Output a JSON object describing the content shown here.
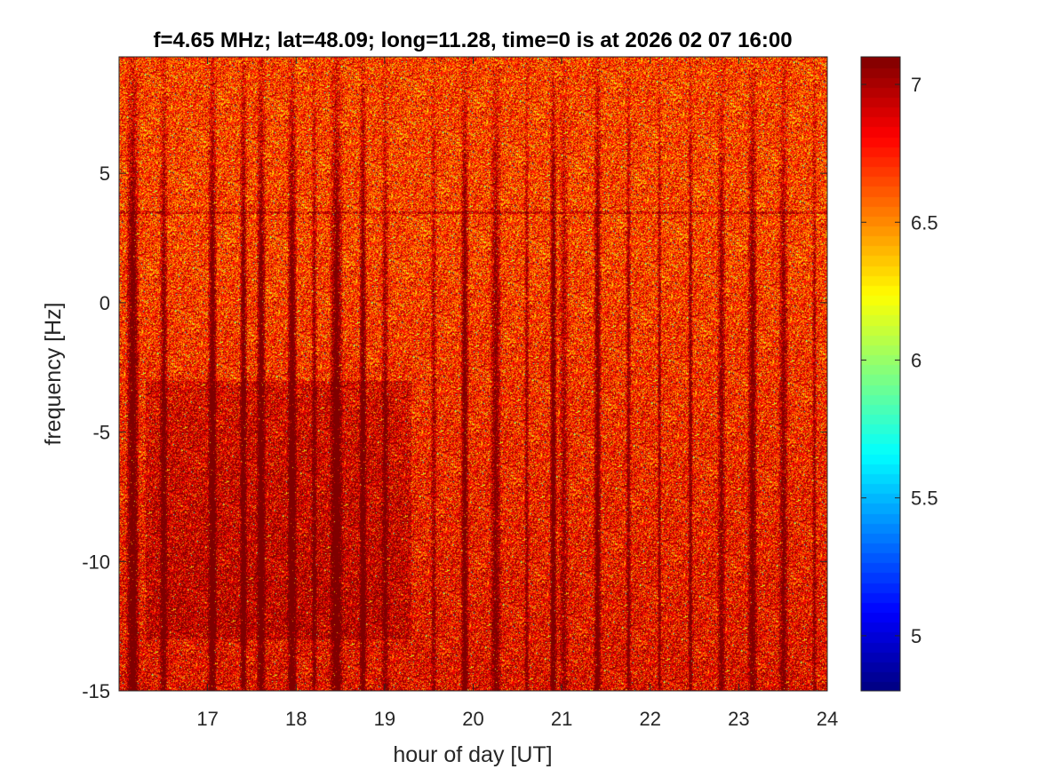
{
  "chart_data": {
    "type": "heatmap",
    "title": "f=4.65 MHz;  lat=48.09; long=11.28, time=0 is at 2026 02 07 16:00",
    "xlabel": "hour of day [UT]",
    "ylabel": "frequency [Hz]",
    "xlim": [
      16,
      24
    ],
    "ylim": [
      -15,
      9.5
    ],
    "x_ticks": [
      17,
      18,
      19,
      20,
      21,
      22,
      23,
      24
    ],
    "x_tick_labels": [
      "17",
      "18",
      "19",
      "20",
      "21",
      "22",
      "23",
      "24"
    ],
    "y_ticks": [
      -15,
      -10,
      -5,
      0,
      5
    ],
    "y_tick_labels": [
      "-15",
      "-10",
      "-5",
      "0",
      "5"
    ],
    "colorbar": {
      "clim": [
        4.8,
        7.1
      ],
      "ticks": [
        5,
        5.5,
        6,
        6.5,
        7
      ],
      "tick_labels": [
        "5",
        "5.5",
        "6",
        "6.5",
        "7"
      ],
      "colormap": "jet"
    },
    "features": {
      "vertical_streak_hours": [
        16.15,
        16.5,
        17.05,
        17.4,
        17.6,
        17.95,
        18.2,
        18.45,
        18.75,
        19.0,
        19.55,
        19.9,
        20.25,
        20.6,
        20.9,
        21.02,
        21.4,
        21.75,
        22.1,
        22.45,
        22.8,
        23.15,
        23.5,
        23.85
      ],
      "faint_horizontal_line_hz": 3.5,
      "dense_region_hours": [
        16.3,
        19.3
      ],
      "dense_region_hz": [
        -13,
        -3
      ]
    }
  }
}
